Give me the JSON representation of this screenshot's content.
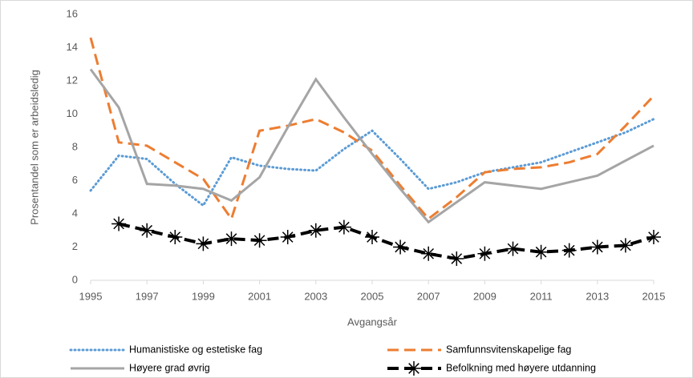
{
  "chart_data": {
    "type": "line",
    "x_label": "Avgangsår",
    "y_label": "Prosentandel som er arbeidsledig",
    "x": [
      1995,
      1996,
      1997,
      1998,
      1999,
      2000,
      2001,
      2002,
      2003,
      2004,
      2005,
      2006,
      2007,
      2008,
      2009,
      2010,
      2011,
      2012,
      2013,
      2014,
      2015
    ],
    "xlim": [
      1995,
      2015
    ],
    "xticks": [
      1995,
      1997,
      1999,
      2001,
      2003,
      2005,
      2007,
      2009,
      2011,
      2013,
      2015
    ],
    "ylim": [
      0,
      16
    ],
    "yticks": [
      0,
      2,
      4,
      6,
      8,
      10,
      12,
      14,
      16
    ],
    "grid": false,
    "legend": "bottom",
    "series": [
      {
        "name": "Humanistiske og estetiske fag",
        "color": "#5b9bd5",
        "style": "dotted",
        "values": [
          5.4,
          7.5,
          7.3,
          5.8,
          4.5,
          7.4,
          6.9,
          6.7,
          6.6,
          7.9,
          9.0,
          7.3,
          5.5,
          5.9,
          6.5,
          6.8,
          7.1,
          7.7,
          8.3,
          8.9,
          9.7
        ]
      },
      {
        "name": "Samfunnsvitenskapelige fag",
        "color": "#ed7d31",
        "style": "dashed",
        "values": [
          14.6,
          8.3,
          8.1,
          7.1,
          6.1,
          3.7,
          9.0,
          9.3,
          9.7,
          8.9,
          7.8,
          5.7,
          3.7,
          5.0,
          6.5,
          6.7,
          6.8,
          7.1,
          7.6,
          9.3,
          11.1
        ]
      },
      {
        "name": "Høyere grad øvrig",
        "color": "#a5a5a5",
        "style": "solid",
        "values": [
          12.7,
          10.4,
          5.8,
          5.7,
          5.5,
          4.8,
          6.2,
          9.2,
          12.1,
          9.8,
          7.6,
          5.5,
          3.5,
          4.7,
          5.9,
          5.7,
          5.5,
          5.9,
          6.3,
          7.2,
          8.1
        ]
      },
      {
        "name": "Befolkning med høyere utdanning",
        "color": "#000000",
        "style": "dashed-star",
        "values": [
          null,
          3.4,
          3.0,
          2.6,
          2.2,
          2.5,
          2.4,
          2.6,
          3.0,
          3.2,
          2.6,
          2.0,
          1.6,
          1.3,
          1.6,
          1.9,
          1.7,
          1.8,
          2.0,
          2.1,
          2.6
        ]
      }
    ]
  }
}
